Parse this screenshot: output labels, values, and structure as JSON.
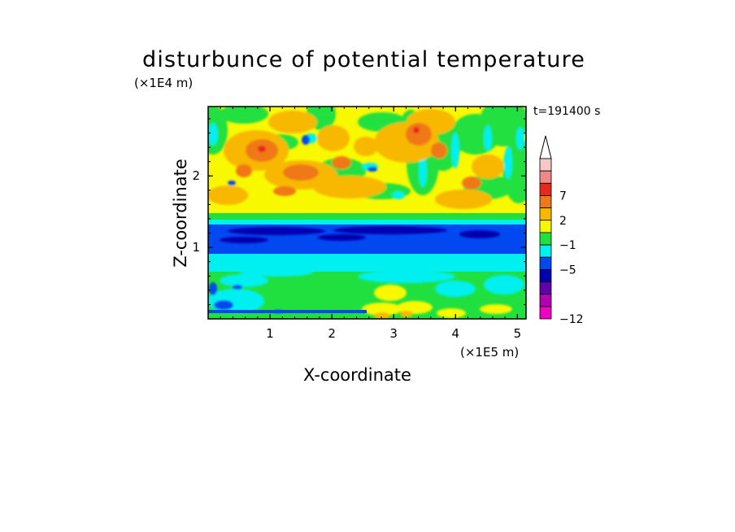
{
  "chart_data": {
    "type": "heatmap",
    "title": "disturbunce of potential temperature",
    "xlabel": "X-coordinate",
    "ylabel": "Z-coordinate",
    "x_unit_label": "(×1E5 m)",
    "y_unit_label": "(×1E4 m)",
    "time_label": "t=191400 s",
    "xlim": [
      0,
      5.14
    ],
    "ylim": [
      0,
      2.97
    ],
    "x_ticks": [
      {
        "value": 1,
        "label": "1"
      },
      {
        "value": 2,
        "label": "2"
      },
      {
        "value": 3,
        "label": "3"
      },
      {
        "value": 4,
        "label": "4"
      },
      {
        "value": 5,
        "label": "5"
      }
    ],
    "y_ticks": [
      {
        "value": 1,
        "label": "1"
      },
      {
        "value": 2,
        "label": "2"
      }
    ],
    "colorbar": {
      "extend": "max",
      "levels": [
        {
          "color": "#f8c8c8",
          "label": ""
        },
        {
          "color": "#f08888",
          "label": ""
        },
        {
          "color": "#e8281c",
          "label": "7"
        },
        {
          "color": "#f07818",
          "label": ""
        },
        {
          "color": "#f8b800",
          "label": "2"
        },
        {
          "color": "#f8f800",
          "label": ""
        },
        {
          "color": "#20e040",
          "label": "−1"
        },
        {
          "color": "#00f0f0",
          "label": ""
        },
        {
          "color": "#0048f0",
          "label": "−5"
        },
        {
          "color": "#0000b0",
          "label": ""
        },
        {
          "color": "#6000a8",
          "label": ""
        },
        {
          "color": "#b000b0",
          "label": ""
        },
        {
          "color": "#f000c0",
          "label": "−12"
        }
      ]
    },
    "field_bands": [
      {
        "z_range": [
          1.42,
          2.97
        ],
        "description_color": "#f8f800",
        "dominant": "yellow/orange/green wave pattern"
      },
      {
        "z_range": [
          1.35,
          1.42
        ],
        "dominant_color": "#00f0f0"
      },
      {
        "z_range": [
          1.02,
          1.35
        ],
        "dominant_color": "#0048f0"
      },
      {
        "z_range": [
          0.9,
          1.02
        ],
        "dominant_color": "#00f0f0"
      },
      {
        "z_range": [
          0.0,
          0.9
        ],
        "dominant_color": "#20e040"
      }
    ]
  }
}
